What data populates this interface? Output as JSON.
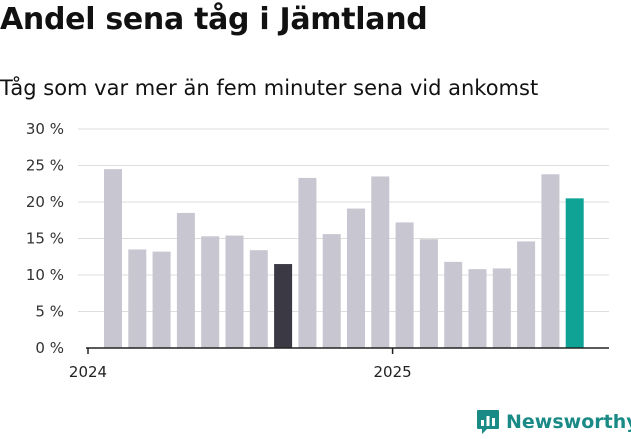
{
  "chart_data": {
    "type": "bar",
    "title": "Andel sena tåg i Jämtland",
    "subtitle": "Tåg som var mer än fem minuter sena vid ankomst",
    "xlabel": "",
    "ylabel": "",
    "ylim": [
      0,
      30
    ],
    "yticks": [
      "0 %",
      "5 %",
      "10 %",
      "15 %",
      "20 %",
      "25 %",
      "30 %"
    ],
    "ytick_values": [
      0,
      5,
      10,
      15,
      20,
      25,
      30
    ],
    "x_tick_labels": [
      {
        "label": "2024",
        "index": 0
      },
      {
        "label": "2025",
        "index": 12
      }
    ],
    "grid": true,
    "values": [
      24.5,
      13.5,
      13.2,
      18.5,
      15.3,
      15.4,
      13.4,
      11.5,
      23.3,
      15.6,
      19.1,
      23.5,
      17.2,
      14.9,
      11.8,
      10.8,
      10.9,
      14.6,
      23.8,
      20.5
    ],
    "highlight_dark_index": 7,
    "highlight_accent_index": 19,
    "colors": {
      "default": "#c8c6d0",
      "dark": "#3b3944",
      "accent": "#0fa396",
      "grid": "#dddddd",
      "axis": "#222222"
    }
  },
  "brand": {
    "name": "Newsworthy",
    "color": "#1a8a86"
  }
}
